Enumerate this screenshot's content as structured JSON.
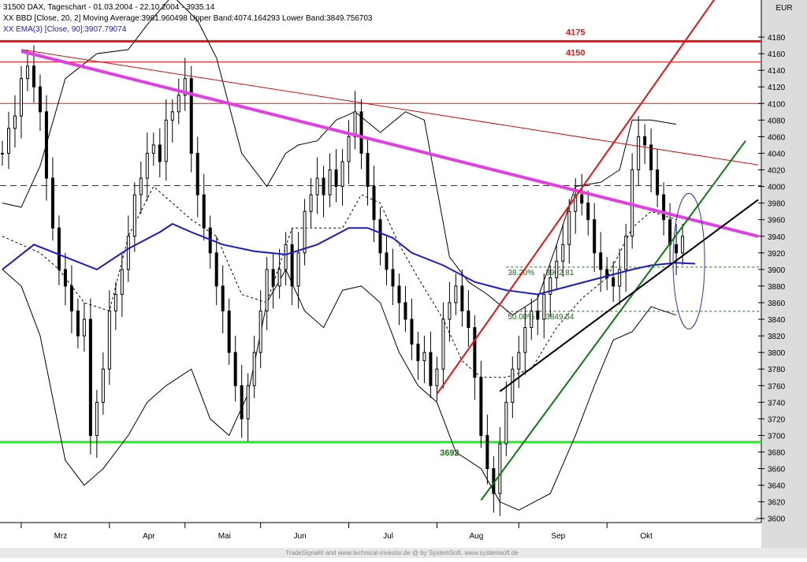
{
  "chart_header": {
    "line1": "31500 DAX, Tageschart - 01.03.2004 - 22.10.2004 - 3935.14",
    "line2": "XX BBD [Close, 20, 2] Moving Average:3961.960498 Upper Band:4074.164293 Lower Band:3849.756703",
    "line3": "XX EMA(3) [Close, 90]:3907.79074"
  },
  "currency": "EUR",
  "footer": "TradeSignal® and www.technical-investor.de @ by SystemSoft, www.systemsoft.de",
  "colors": {
    "price_bars": "#000000",
    "ema": "#1a1acc",
    "bands": "#000000",
    "resistance": "#ee1111",
    "support": "#22ee22",
    "downtrend": "#e040e0",
    "uptrend_red": "#ee1111",
    "uptrend_green": "#117711",
    "uptrend_black": "#000000",
    "fib": "#226622",
    "ellipse": "#3333aa",
    "right_panel": "#dcdcdc"
  },
  "chart_data": {
    "type": "line",
    "x_axis": {
      "labels": [
        "Mrz",
        "Apr",
        "Mai",
        "Jun",
        "Jul",
        "Aug",
        "Sep",
        "Okt"
      ]
    },
    "y_axis": {
      "ylim": [
        3595,
        4200
      ],
      "ticks": [
        3600,
        3620,
        3640,
        3660,
        3680,
        3700,
        3720,
        3740,
        3760,
        3780,
        3800,
        3820,
        3840,
        3860,
        3880,
        3900,
        3920,
        3940,
        3960,
        3980,
        4000,
        4020,
        4040,
        4060,
        4080,
        4100,
        4120,
        4140,
        4160,
        4180
      ]
    },
    "levels": [
      {
        "label": "4175",
        "value": 4175,
        "color": "#ee1111"
      },
      {
        "label": "4150",
        "value": 4150,
        "color": "#ee1111"
      },
      {
        "label": "",
        "value": 4100,
        "color": "#ee1111"
      },
      {
        "label": "3692",
        "value": 3692,
        "color": "#22ee22"
      }
    ],
    "fib_levels": [
      {
        "label": "38.20%",
        "value": 3902.81,
        "value_text": "3902.81"
      },
      {
        "label": "50.00%",
        "value": 3849.54,
        "value_text": "3849.54"
      }
    ],
    "dashed_level": 4001,
    "trendlines": [
      {
        "name": "downtrend",
        "points": [
          [
            3,
            4163
          ],
          [
            120,
            3940
          ]
        ]
      },
      {
        "name": "channel-top",
        "points": [
          [
            3,
            4165
          ],
          [
            120,
            4026
          ]
        ]
      },
      {
        "name": "uptrend-red",
        "points": [
          [
            69,
            3750
          ],
          [
            113,
            4225
          ]
        ]
      },
      {
        "name": "uptrend-green",
        "points": [
          [
            76,
            3622
          ],
          [
            118,
            4055
          ]
        ]
      },
      {
        "name": "uptrend-black",
        "points": [
          [
            79,
            3753
          ],
          [
            120,
            3984
          ]
        ]
      }
    ],
    "ema_closes": [
      [
        0,
        3900
      ],
      [
        5,
        3930
      ],
      [
        10,
        3915
      ],
      [
        15,
        3900
      ],
      [
        20,
        3925
      ],
      [
        25,
        3945
      ],
      [
        27,
        3955
      ],
      [
        30,
        3945
      ],
      [
        35,
        3930
      ],
      [
        40,
        3922
      ],
      [
        45,
        3918
      ],
      [
        50,
        3930
      ],
      [
        55,
        3950
      ],
      [
        58,
        3950
      ],
      [
        62,
        3938
      ],
      [
        65,
        3920
      ],
      [
        70,
        3905
      ],
      [
        75,
        3885
      ],
      [
        80,
        3875
      ],
      [
        85,
        3870
      ],
      [
        90,
        3880
      ],
      [
        95,
        3890
      ],
      [
        100,
        3900
      ],
      [
        103,
        3905
      ],
      [
        107,
        3908
      ],
      [
        110,
        3907
      ]
    ],
    "upper_band": [
      [
        0,
        3980
      ],
      [
        3,
        3975
      ],
      [
        6,
        4025
      ],
      [
        10,
        4130
      ],
      [
        15,
        4160
      ],
      [
        20,
        4165
      ],
      [
        23,
        4195
      ],
      [
        27,
        4230
      ],
      [
        31,
        4200
      ],
      [
        34,
        4155
      ],
      [
        38,
        4040
      ],
      [
        42,
        4000
      ],
      [
        45,
        4040
      ],
      [
        47,
        4050
      ],
      [
        50,
        4055
      ],
      [
        53,
        4080
      ],
      [
        56,
        4090
      ],
      [
        60,
        4065
      ],
      [
        64,
        4090
      ],
      [
        67,
        4080
      ],
      [
        71,
        3915
      ],
      [
        74,
        3885
      ],
      [
        77,
        3870
      ],
      [
        81,
        3845
      ],
      [
        85,
        3865
      ],
      [
        88,
        3930
      ],
      [
        91,
        4000
      ],
      [
        95,
        4005
      ],
      [
        98,
        4020
      ],
      [
        100,
        4080
      ],
      [
        103,
        4080
      ],
      [
        107,
        4075
      ]
    ],
    "lower_band": [
      [
        0,
        3900
      ],
      [
        3,
        3880
      ],
      [
        6,
        3820
      ],
      [
        10,
        3670
      ],
      [
        13,
        3640
      ],
      [
        16,
        3660
      ],
      [
        20,
        3700
      ],
      [
        23,
        3740
      ],
      [
        26,
        3760
      ],
      [
        30,
        3780
      ],
      [
        33,
        3720
      ],
      [
        36,
        3700
      ],
      [
        39,
        3750
      ],
      [
        42,
        3860
      ],
      [
        45,
        3900
      ],
      [
        48,
        3850
      ],
      [
        51,
        3830
      ],
      [
        54,
        3875
      ],
      [
        57,
        3880
      ],
      [
        60,
        3860
      ],
      [
        63,
        3800
      ],
      [
        66,
        3760
      ],
      [
        69,
        3740
      ],
      [
        72,
        3680
      ],
      [
        76,
        3660
      ],
      [
        79,
        3620
      ],
      [
        82,
        3610
      ],
      [
        87,
        3630
      ],
      [
        91,
        3700
      ],
      [
        94,
        3760
      ],
      [
        97,
        3815
      ],
      [
        100,
        3825
      ],
      [
        103,
        3855
      ],
      [
        107,
        3845
      ]
    ],
    "middle_band": [
      [
        0,
        3940
      ],
      [
        3,
        3930
      ],
      [
        6,
        3920
      ],
      [
        9,
        3900
      ],
      [
        13,
        3860
      ],
      [
        17,
        3850
      ],
      [
        20,
        3940
      ],
      [
        24,
        4000
      ],
      [
        27,
        3980
      ],
      [
        30,
        3960
      ],
      [
        34,
        3940
      ],
      [
        38,
        3870
      ],
      [
        42,
        3860
      ],
      [
        46,
        3950
      ],
      [
        50,
        3950
      ],
      [
        54,
        3950
      ],
      [
        57,
        3990
      ],
      [
        60,
        3980
      ],
      [
        63,
        3930
      ],
      [
        66,
        3890
      ],
      [
        70,
        3840
      ],
      [
        73,
        3790
      ],
      [
        76,
        3770
      ],
      [
        80,
        3770
      ],
      [
        84,
        3780
      ],
      [
        88,
        3830
      ],
      [
        92,
        3865
      ],
      [
        96,
        3890
      ],
      [
        100,
        3950
      ],
      [
        103,
        3970
      ],
      [
        107,
        3960
      ]
    ],
    "closes": [
      4040,
      4070,
      4085,
      4130,
      4145,
      4120,
      4090,
      4010,
      3950,
      3900,
      3880,
      3850,
      3820,
      3840,
      3700,
      3740,
      3780,
      3850,
      3870,
      3900,
      3940,
      3990,
      4010,
      4040,
      4050,
      4030,
      4080,
      4090,
      4110,
      4130,
      4040,
      3990,
      3950,
      3920,
      3880,
      3850,
      3800,
      3760,
      3720,
      3760,
      3800,
      3850,
      3900,
      3880,
      3900,
      3930,
      3880,
      3920,
      3970,
      3990,
      4010,
      3990,
      4020,
      4000,
      4030,
      4060,
      4090,
      4040,
      4000,
      3960,
      3920,
      3900,
      3880,
      3860,
      3840,
      3810,
      3790,
      3800,
      3760,
      3780,
      3840,
      3860,
      3880,
      3850,
      3830,
      3770,
      3700,
      3660,
      3630,
      3690,
      3740,
      3780,
      3800,
      3830,
      3850,
      3840,
      3870,
      3890,
      3910,
      3930,
      3970,
      3990,
      3980,
      3960,
      3920,
      3900,
      3890,
      3880,
      3900,
      3940,
      4020,
      4060,
      4050,
      4020,
      3990,
      3960,
      3930,
      3920,
      3940
    ]
  }
}
